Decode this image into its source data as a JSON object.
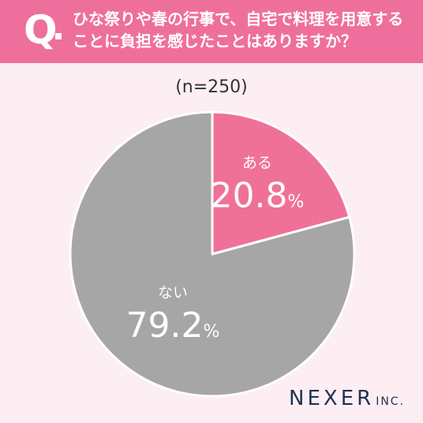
{
  "question": {
    "mark": "Q",
    "text": "ひな祭りや春の行事で、自宅で料理を用意することに負担を感じたことはありますか？"
  },
  "sample_label": "(n=250)",
  "logo": {
    "main": "NEXER",
    "sub": "INC."
  },
  "colors": {
    "header": "#ef6f9c",
    "slice_yes": "#f07198",
    "slice_no": "#a6a6a6",
    "background": "#fdeef3"
  },
  "chart_data": {
    "type": "pie",
    "title": "",
    "slices": [
      {
        "label": "ある",
        "value": 20.8,
        "unit": "%",
        "color": "#f07198"
      },
      {
        "label": "ない",
        "value": 79.2,
        "unit": "%",
        "color": "#a6a6a6"
      }
    ]
  }
}
